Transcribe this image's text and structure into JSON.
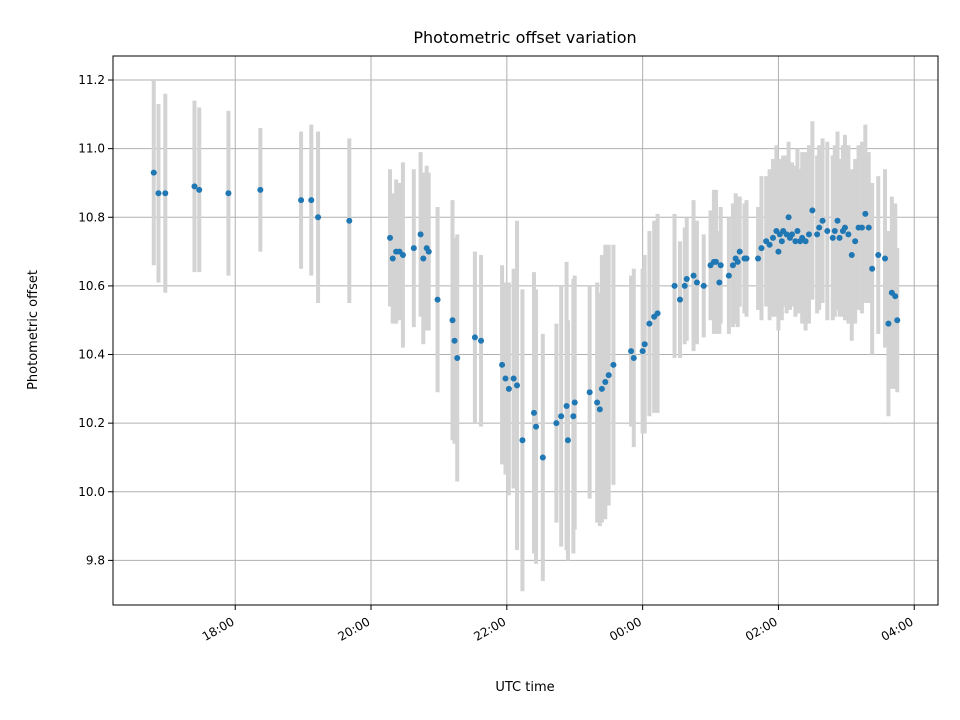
{
  "chart_data": {
    "type": "scatter",
    "title": "Photometric offset variation",
    "xlabel": "UTC time",
    "ylabel": "Photometric offset",
    "x_ticks": [
      "18:00",
      "20:00",
      "22:00",
      "00:00",
      "02:00",
      "04:00"
    ],
    "y_ticks": [
      "9.8",
      "10.0",
      "10.2",
      "10.4",
      "10.6",
      "10.8",
      "11.0",
      "11.2"
    ],
    "xlim_hours": [
      16.2,
      28.35
    ],
    "ylim": [
      9.67,
      11.27
    ],
    "grid": true,
    "point_color": "#1f77b4",
    "errorbar_color": "#d3d3d3",
    "series": [
      {
        "x_hours": [
          16.8,
          16.87,
          16.97,
          17.4,
          17.47,
          17.9,
          18.37,
          18.97,
          19.12,
          19.22,
          19.68,
          20.28,
          20.32,
          20.37,
          20.42,
          20.47,
          20.63,
          20.73,
          20.77,
          20.82,
          20.85,
          20.98,
          21.2,
          21.23,
          21.27,
          21.53,
          21.62,
          21.93,
          21.98,
          22.03,
          22.1,
          22.15,
          22.23,
          22.4,
          22.43,
          22.53,
          22.73,
          22.8,
          22.88,
          22.9,
          22.98,
          23.0,
          23.22,
          23.33,
          23.37,
          23.4,
          23.45,
          23.5,
          23.57,
          23.83,
          23.87,
          24.0,
          24.03,
          24.1,
          24.17,
          24.22,
          24.47,
          24.55,
          24.62,
          24.65,
          24.75,
          24.8,
          24.9,
          25.0,
          25.05,
          25.08,
          25.13,
          25.15,
          25.27,
          25.33,
          25.37,
          25.4,
          25.43,
          25.5,
          25.53,
          25.7,
          25.75,
          25.82,
          25.87,
          25.92,
          25.97,
          26.0,
          26.02,
          26.05,
          26.07,
          26.12,
          26.15,
          26.17,
          26.2,
          26.25,
          26.28,
          26.32,
          26.35,
          26.4,
          26.45,
          26.5,
          26.57,
          26.6,
          26.65,
          26.72,
          26.8,
          26.83,
          26.87,
          26.9,
          26.95,
          26.98,
          27.03,
          27.08,
          27.13,
          27.18,
          27.23,
          27.28,
          27.33,
          27.38,
          27.47,
          27.57,
          27.62,
          27.67,
          27.72,
          27.75
        ],
        "y": [
          10.93,
          10.87,
          10.87,
          10.89,
          10.88,
          10.87,
          10.88,
          10.85,
          10.85,
          10.8,
          10.79,
          10.74,
          10.68,
          10.7,
          10.7,
          10.69,
          10.71,
          10.75,
          10.68,
          10.71,
          10.7,
          10.56,
          10.5,
          10.44,
          10.39,
          10.45,
          10.44,
          10.37,
          10.33,
          10.3,
          10.33,
          10.31,
          10.15,
          10.23,
          10.19,
          10.1,
          10.2,
          10.22,
          10.25,
          10.15,
          10.22,
          10.26,
          10.29,
          10.26,
          10.24,
          10.3,
          10.32,
          10.34,
          10.37,
          10.41,
          10.39,
          10.41,
          10.43,
          10.49,
          10.51,
          10.52,
          10.6,
          10.56,
          10.6,
          10.62,
          10.63,
          10.61,
          10.6,
          10.66,
          10.67,
          10.67,
          10.61,
          10.66,
          10.63,
          10.66,
          10.68,
          10.67,
          10.7,
          10.68,
          10.68,
          10.68,
          10.71,
          10.73,
          10.72,
          10.74,
          10.76,
          10.7,
          10.75,
          10.73,
          10.76,
          10.75,
          10.8,
          10.74,
          10.75,
          10.73,
          10.76,
          10.73,
          10.74,
          10.73,
          10.75,
          10.82,
          10.75,
          10.77,
          10.79,
          10.76,
          10.74,
          10.76,
          10.79,
          10.74,
          10.76,
          10.77,
          10.75,
          10.69,
          10.73,
          10.77,
          10.77,
          10.81,
          10.77,
          10.65,
          10.69,
          10.68,
          10.49,
          10.58,
          10.57,
          10.5
        ],
        "err": [
          0.27,
          0.26,
          0.29,
          0.25,
          0.24,
          0.24,
          0.18,
          0.2,
          0.22,
          0.25,
          0.24,
          0.2,
          0.19,
          0.21,
          0.2,
          0.27,
          0.23,
          0.24,
          0.25,
          0.24,
          0.23,
          0.27,
          0.35,
          0.3,
          0.36,
          0.25,
          0.25,
          0.29,
          0.28,
          0.31,
          0.32,
          0.48,
          0.44,
          0.41,
          0.4,
          0.36,
          0.29,
          0.38,
          0.42,
          0.35,
          0.4,
          0.37,
          0.31,
          0.35,
          0.34,
          0.39,
          0.4,
          0.38,
          0.35,
          0.22,
          0.26,
          0.24,
          0.26,
          0.27,
          0.28,
          0.29,
          0.21,
          0.17,
          0.17,
          0.18,
          0.22,
          0.18,
          0.15,
          0.16,
          0.21,
          0.21,
          0.15,
          0.17,
          0.17,
          0.18,
          0.19,
          0.19,
          0.16,
          0.16,
          0.17,
          0.15,
          0.21,
          0.19,
          0.22,
          0.23,
          0.25,
          0.23,
          0.22,
          0.23,
          0.22,
          0.23,
          0.22,
          0.21,
          0.21,
          0.22,
          0.24,
          0.21,
          0.25,
          0.26,
          0.26,
          0.26,
          0.23,
          0.24,
          0.24,
          0.26,
          0.24,
          0.25,
          0.26,
          0.23,
          0.25,
          0.27,
          0.26,
          0.25,
          0.24,
          0.24,
          0.25,
          0.26,
          0.22,
          0.25,
          0.23,
          0.26,
          0.27,
          0.28,
          0.27,
          0.21
        ]
      }
    ]
  }
}
